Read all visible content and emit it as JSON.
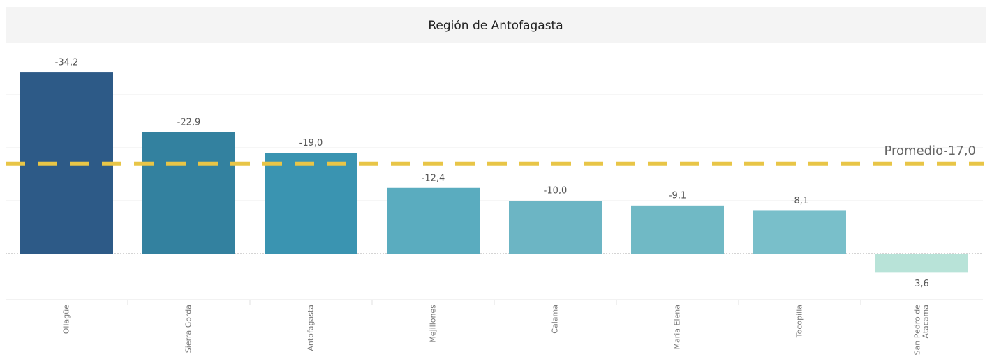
{
  "chart_data": {
    "type": "bar",
    "title": "Región de Antofagasta",
    "categories": [
      "Ollagüe",
      "Sierra Gorda",
      "Antofagasta",
      "Mejillones",
      "Calama",
      "María Elena",
      "Tocopilla",
      "San Pedro de Atacama"
    ],
    "values": [
      -34.2,
      -22.9,
      -19.0,
      -12.4,
      -10.0,
      -9.1,
      -8.1,
      3.6
    ],
    "value_labels": [
      "-34,2",
      "-22,9",
      "-19,0",
      "-12,4",
      "-10,0",
      "-9,1",
      "-8,1",
      "3,6"
    ],
    "colors": [
      "#2d5a87",
      "#33819f",
      "#3a94b1",
      "#5aacbf",
      "#6cb5c4",
      "#70b9c5",
      "#79bfca",
      "#b8e3d8"
    ],
    "ylim": [
      -39,
      9
    ],
    "y_reversed": true,
    "yticks": [
      -30,
      -20,
      -10,
      0
    ],
    "grid": true,
    "average": {
      "label": "Promedio",
      "value": -17.0,
      "value_label": "-17,0",
      "color": "#e8c547"
    }
  }
}
